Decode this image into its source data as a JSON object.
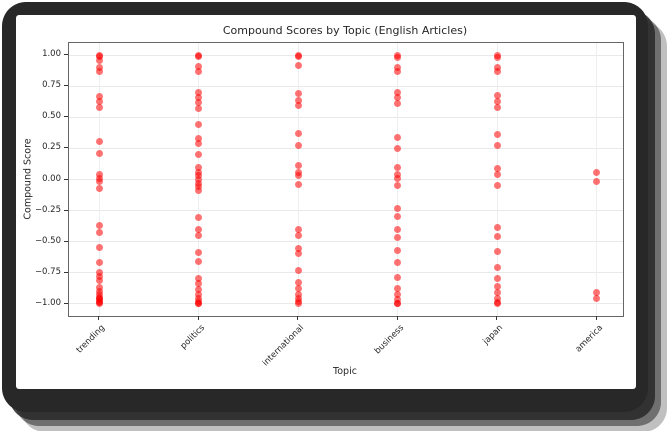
{
  "window": {
    "frame_color": "#282828",
    "figure_background": "#ffffff"
  },
  "chart_data": {
    "type": "scatter",
    "title": "Compound Scores by Topic (English Articles)",
    "xlabel": "Topic",
    "ylabel": "Compound Score",
    "categories": [
      "trending",
      "politics",
      "international",
      "business",
      "japan",
      "america"
    ],
    "y_ticks": [
      "1.00",
      "0.75",
      "0.50",
      "0.25",
      "0.00",
      "−0.25",
      "−0.50",
      "−0.75",
      "−1.00"
    ],
    "y_tick_values": [
      1.0,
      0.75,
      0.5,
      0.25,
      0.0,
      -0.25,
      -0.5,
      -0.75,
      -1.0
    ],
    "ylim": [
      -1.1,
      1.1
    ],
    "grid": true,
    "legend": false,
    "point_color": "#ff0000",
    "point_alpha": 0.55,
    "series": [
      {
        "name": "trending",
        "values": [
          1.0,
          0.99,
          0.96,
          0.9,
          0.87,
          0.67,
          0.63,
          0.58,
          0.31,
          0.21,
          0.04,
          0.01,
          -0.02,
          -0.07,
          -0.37,
          -0.43,
          -0.55,
          -0.67,
          -0.75,
          -0.78,
          -0.81,
          -0.87,
          -0.9,
          -0.93,
          -0.95,
          -0.96,
          -0.97,
          -0.98,
          -0.99,
          -1.0
        ]
      },
      {
        "name": "politics",
        "values": [
          1.0,
          0.99,
          0.91,
          0.87,
          0.7,
          0.66,
          0.62,
          0.57,
          0.44,
          0.33,
          0.29,
          0.2,
          0.1,
          0.06,
          0.03,
          0.0,
          -0.03,
          -0.06,
          -0.09,
          -0.31,
          -0.4,
          -0.45,
          -0.59,
          -0.66,
          -0.8,
          -0.84,
          -0.89,
          -0.93,
          -0.96,
          -0.98,
          -1.0,
          -1.0
        ]
      },
      {
        "name": "international",
        "values": [
          1.0,
          0.99,
          0.92,
          0.69,
          0.64,
          0.6,
          0.37,
          0.27,
          0.11,
          0.06,
          0.03,
          -0.04,
          -0.4,
          -0.45,
          -0.56,
          -0.6,
          -0.73,
          -0.83,
          -0.88,
          -0.93,
          -0.96,
          -0.98,
          -1.0
        ]
      },
      {
        "name": "business",
        "values": [
          1.0,
          0.98,
          0.9,
          0.87,
          0.7,
          0.66,
          0.61,
          0.34,
          0.25,
          0.1,
          0.04,
          0.01,
          -0.05,
          -0.23,
          -0.3,
          -0.4,
          -0.47,
          -0.57,
          -0.67,
          -0.79,
          -0.88,
          -0.93,
          -0.97,
          -1.0,
          -1.0
        ]
      },
      {
        "name": "japan",
        "values": [
          1.0,
          0.98,
          0.9,
          0.87,
          0.68,
          0.63,
          0.58,
          0.36,
          0.27,
          0.09,
          0.04,
          -0.05,
          -0.39,
          -0.46,
          -0.58,
          -0.71,
          -0.8,
          -0.86,
          -0.91,
          -0.96,
          -0.99,
          -1.0
        ]
      },
      {
        "name": "america",
        "values": [
          0.06,
          -0.02,
          -0.91,
          -0.96
        ]
      }
    ]
  }
}
